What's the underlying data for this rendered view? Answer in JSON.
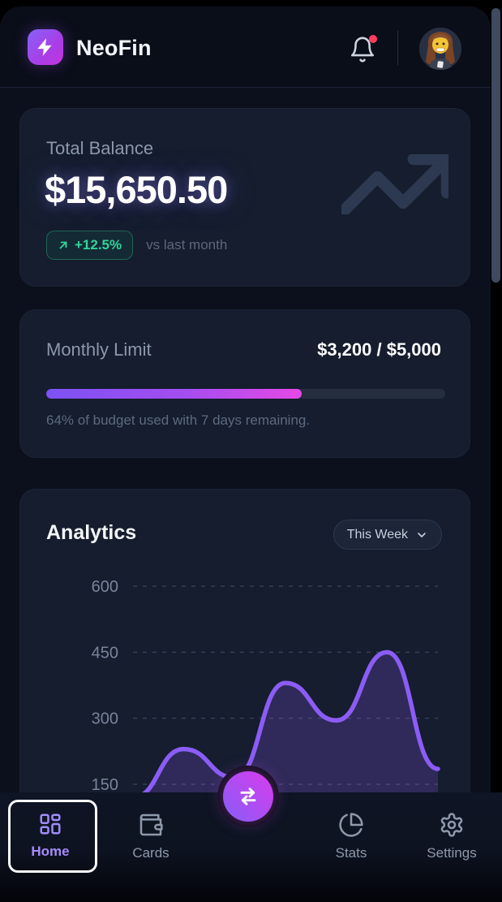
{
  "header": {
    "brand": "NeoFin",
    "notifications": {
      "has_unread": true
    }
  },
  "balance_card": {
    "label": "Total Balance",
    "amount": "$15,650.50",
    "change": "+12.5%",
    "comparison": "vs last month"
  },
  "limit_card": {
    "label": "Monthly Limit",
    "value": "$3,200 / $5,000",
    "progress_percent": 64,
    "caption": "64% of budget used with 7 days remaining."
  },
  "analytics_card": {
    "title": "Analytics",
    "range_selected": "This Week"
  },
  "chart_data": {
    "type": "area",
    "x": [
      1,
      2,
      3,
      4,
      5,
      6,
      7
    ],
    "x_labels_visible": false,
    "values": [
      120,
      230,
      165,
      380,
      295,
      450,
      185
    ],
    "yticks": [
      600,
      450,
      300,
      150
    ],
    "ylim_visible": [
      150,
      600
    ],
    "grid": "horizontal-dashed",
    "legend": "none",
    "line_color": "#8b5cf6",
    "fill_color": "rgba(139,92,246,0.22)",
    "tick_color": "#79849b",
    "grid_color": "#414b61"
  },
  "fab": {
    "action": "transfer"
  },
  "nav": {
    "items": [
      {
        "label": "Home",
        "active": true
      },
      {
        "label": "Cards",
        "active": false
      },
      {
        "label": "Stats",
        "active": false
      },
      {
        "label": "Settings",
        "active": false
      }
    ]
  },
  "colors": {
    "accent_purple": "#8b5cf6",
    "accent_magenta": "#d946ef",
    "positive_green": "#34d399",
    "card_bg": "#151d2e",
    "page_bg": "#0b101c"
  }
}
